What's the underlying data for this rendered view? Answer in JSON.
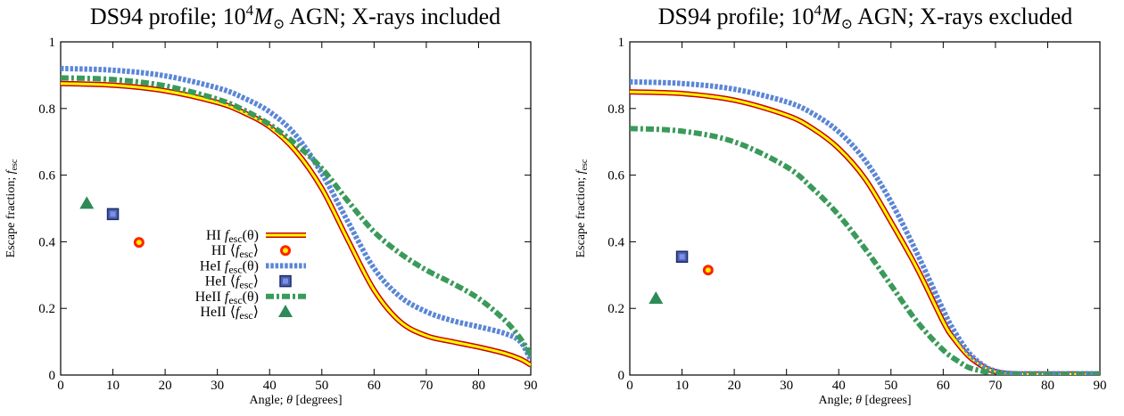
{
  "chart_data": [
    {
      "type": "line",
      "title": "DS94 profile; 10^4 M_⊙ AGN; X-rays included",
      "title_parts": {
        "a": "DS94 profile; 10",
        "sup": "4",
        "m": "M",
        "sub": "⊙",
        "b": " AGN; X-rays included"
      },
      "xlabel": "Angle; θ [degrees]",
      "ylabel": "Escape fraction; f_esc",
      "xlim": [
        0,
        90
      ],
      "ylim": [
        0,
        1
      ],
      "xticks": [
        "0",
        "10",
        "20",
        "30",
        "40",
        "50",
        "60",
        "70",
        "80",
        "90"
      ],
      "yticks": [
        "0",
        "0.2",
        "0.4",
        "0.6",
        "0.8",
        "1"
      ],
      "legend_position": "center-left",
      "series": [
        {
          "name": "HI f_esc(θ)",
          "legend": {
            "pre": "HI ",
            "f": "f",
            "sub": "esc",
            "post": "(θ)"
          },
          "style": "hi-line",
          "x": [
            0,
            10,
            20,
            30,
            35,
            40,
            45,
            50,
            55,
            60,
            65,
            70,
            75,
            80,
            85,
            88,
            90
          ],
          "y": [
            0.875,
            0.87,
            0.853,
            0.818,
            0.788,
            0.745,
            0.672,
            0.56,
            0.405,
            0.255,
            0.16,
            0.118,
            0.1,
            0.084,
            0.065,
            0.048,
            0.03
          ]
        },
        {
          "name": "HI ⟨f_esc⟩",
          "legend": {
            "pre": "HI ⟨",
            "f": "f",
            "sub": "esc",
            "post": "⟩"
          },
          "style": "hi-point",
          "x": [
            15
          ],
          "y": [
            0.398
          ]
        },
        {
          "name": "HeI f_esc(θ)",
          "legend": {
            "pre": "HeI ",
            "f": "f",
            "sub": "esc",
            "post": "(θ)"
          },
          "style": "hei-line",
          "x": [
            0,
            10,
            20,
            30,
            35,
            40,
            45,
            50,
            55,
            60,
            65,
            70,
            75,
            80,
            85,
            88,
            90
          ],
          "y": [
            0.92,
            0.915,
            0.898,
            0.862,
            0.832,
            0.79,
            0.72,
            0.605,
            0.46,
            0.32,
            0.235,
            0.19,
            0.163,
            0.145,
            0.125,
            0.1,
            0.045
          ]
        },
        {
          "name": "HeI ⟨f_esc⟩",
          "legend": {
            "pre": "HeI ⟨",
            "f": "f",
            "sub": "esc",
            "post": "⟩"
          },
          "style": "hei-point",
          "x": [
            10
          ],
          "y": [
            0.483
          ]
        },
        {
          "name": "HeII f_esc(θ)",
          "legend": {
            "pre": "HeII ",
            "f": "f",
            "sub": "esc",
            "post": "(θ)"
          },
          "style": "heii-line",
          "x": [
            0,
            10,
            20,
            30,
            35,
            40,
            45,
            50,
            55,
            60,
            65,
            70,
            75,
            80,
            85,
            88,
            90
          ],
          "y": [
            0.892,
            0.887,
            0.868,
            0.828,
            0.796,
            0.752,
            0.693,
            0.62,
            0.522,
            0.43,
            0.365,
            0.315,
            0.275,
            0.23,
            0.165,
            0.11,
            0.06
          ]
        },
        {
          "name": "HeII ⟨f_esc⟩",
          "legend": {
            "pre": "HeII ⟨",
            "f": "f",
            "sub": "esc",
            "post": "⟩"
          },
          "style": "heii-point",
          "x": [
            5
          ],
          "y": [
            0.515
          ]
        }
      ]
    },
    {
      "type": "line",
      "title": "DS94 profile; 10^4 M_⊙ AGN; X-rays excluded",
      "title_parts": {
        "a": "DS94 profile; 10",
        "sup": "4",
        "m": "M",
        "sub": "⊙",
        "b": " AGN; X-rays excluded"
      },
      "xlabel": "Angle; θ [degrees]",
      "ylabel": "Escape fraction; f_esc",
      "xlim": [
        0,
        90
      ],
      "ylim": [
        0,
        1
      ],
      "xticks": [
        "0",
        "10",
        "20",
        "30",
        "40",
        "50",
        "60",
        "70",
        "80",
        "90"
      ],
      "yticks": [
        "0",
        "0.2",
        "0.4",
        "0.6",
        "0.8",
        "1"
      ],
      "series": [
        {
          "style": "hi-line",
          "x": [
            0,
            10,
            20,
            30,
            35,
            40,
            45,
            50,
            55,
            60,
            62,
            65,
            68,
            70,
            72,
            75,
            80,
            90
          ],
          "y": [
            0.85,
            0.845,
            0.825,
            0.78,
            0.74,
            0.68,
            0.59,
            0.46,
            0.32,
            0.16,
            0.11,
            0.055,
            0.022,
            0.01,
            0.005,
            0.003,
            0.003,
            0.003
          ]
        },
        {
          "style": "hi-point",
          "x": [
            15
          ],
          "y": [
            0.315
          ]
        },
        {
          "style": "hei-line",
          "x": [
            0,
            10,
            20,
            30,
            35,
            40,
            45,
            50,
            55,
            60,
            62,
            65,
            68,
            70,
            72,
            75,
            80,
            90
          ],
          "y": [
            0.88,
            0.875,
            0.858,
            0.82,
            0.785,
            0.73,
            0.645,
            0.52,
            0.365,
            0.195,
            0.135,
            0.065,
            0.025,
            0.012,
            0.006,
            0.004,
            0.004,
            0.004
          ]
        },
        {
          "style": "hei-point",
          "x": [
            10
          ],
          "y": [
            0.355
          ]
        },
        {
          "style": "heii-line",
          "x": [
            0,
            10,
            20,
            30,
            35,
            40,
            45,
            50,
            55,
            60,
            63,
            65,
            68,
            70,
            72,
            75,
            80,
            90
          ],
          "y": [
            0.74,
            0.732,
            0.7,
            0.625,
            0.56,
            0.48,
            0.38,
            0.27,
            0.16,
            0.075,
            0.04,
            0.022,
            0.01,
            0.005,
            0.003,
            0.002,
            0.002,
            0.002
          ]
        },
        {
          "style": "heii-point",
          "x": [
            5
          ],
          "y": [
            0.23
          ]
        }
      ]
    }
  ],
  "colors": {
    "hi_line_outer": "#cc0000",
    "hi_line_inner": "#ffff00",
    "hi_point_outer": "#ff2200",
    "hi_point_inner": "#ffee00",
    "hei_line": "#5b86d6",
    "hei_point_fill": "#4a62b4",
    "hei_point_stroke": "#1c2a66",
    "heii_line": "#3a9a5a",
    "heii_point": "#2e8b57"
  }
}
